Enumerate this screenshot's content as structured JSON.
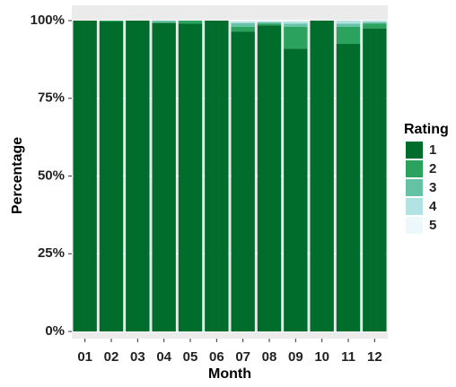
{
  "chart_data": {
    "type": "stacked_bar",
    "x_label": "Month",
    "y_label": "Percentage",
    "legend_title": "Rating",
    "categories": [
      "01",
      "02",
      "03",
      "04",
      "05",
      "06",
      "07",
      "08",
      "09",
      "10",
      "11",
      "12"
    ],
    "series": [
      {
        "name": "1",
        "color": "#006d2c",
        "values": [
          100,
          99.7,
          100,
          99.2,
          99,
          100,
          96.5,
          98.5,
          91,
          100,
          92.5,
          97.5
        ]
      },
      {
        "name": "2",
        "color": "#2ca25f",
        "values": [
          0,
          0.3,
          0,
          0.3,
          1,
          0,
          1.5,
          0.5,
          7,
          0,
          5.5,
          1.5
        ]
      },
      {
        "name": "3",
        "color": "#66c2a4",
        "values": [
          0,
          0,
          0,
          0.5,
          0,
          0,
          1.2,
          0.5,
          1,
          0,
          1,
          0.5
        ]
      },
      {
        "name": "4",
        "color": "#b2e2e2",
        "values": [
          0,
          0,
          0,
          0,
          0,
          0,
          0.5,
          0.3,
          0.7,
          0,
          1,
          0.5
        ]
      },
      {
        "name": "5",
        "color": "#edf8fb",
        "values": [
          0,
          0,
          0,
          0,
          0,
          0,
          0.3,
          0.2,
          0.3,
          0,
          0,
          0
        ]
      }
    ],
    "ylim": [
      0,
      100
    ],
    "yticks": [
      {
        "value": 0,
        "label": "0%"
      },
      {
        "value": 25,
        "label": "25%"
      },
      {
        "value": 50,
        "label": "50%"
      },
      {
        "value": 75,
        "label": "75%"
      },
      {
        "value": 100,
        "label": "100%"
      }
    ],
    "grid": true,
    "legend": "right"
  }
}
